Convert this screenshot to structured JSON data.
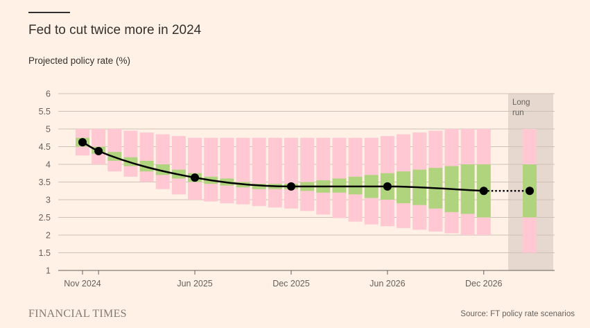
{
  "title": "Fed to cut twice more in 2024",
  "subtitle": "Projected policy rate (%)",
  "brand": "FINANCIAL TIMES",
  "source": "Source: FT policy rate scenarios",
  "colors": {
    "background": "#fff1e5",
    "pink_band": "#ffc8d2",
    "green_band": "#b0d47e",
    "long_run_shade": "#e6d8cf",
    "line": "#000000",
    "grid": "#ccc1b7"
  },
  "chart_data": {
    "type": "line",
    "title": "Fed to cut twice more in 2024",
    "ylabel": "Projected policy rate (%)",
    "ylim": [
      1,
      6
    ],
    "yticks": [
      "1",
      "1.5",
      "2",
      "2.5",
      "3",
      "3.5",
      "4",
      "4.5",
      "5",
      "5.5",
      "6"
    ],
    "xticks": [
      "Nov 2024",
      "Jun 2025",
      "Dec 2025",
      "Jun 2026",
      "Dec 2026"
    ],
    "grid": true,
    "months": [
      "2024-11",
      "2024-12",
      "2025-01",
      "2025-02",
      "2025-03",
      "2025-04",
      "2025-05",
      "2025-06",
      "2025-07",
      "2025-08",
      "2025-09",
      "2025-10",
      "2025-11",
      "2025-12",
      "2026-01",
      "2026-02",
      "2026-03",
      "2026-04",
      "2026-05",
      "2026-06",
      "2026-07",
      "2026-08",
      "2026-09",
      "2026-10",
      "2026-11",
      "2026-12"
    ],
    "outer_band_high": [
      5.0,
      5.0,
      5.0,
      4.95,
      4.9,
      4.85,
      4.8,
      4.75,
      4.75,
      4.75,
      4.75,
      4.75,
      4.75,
      4.75,
      4.75,
      4.75,
      4.75,
      4.75,
      4.75,
      4.8,
      4.85,
      4.9,
      4.95,
      5.0,
      5.0,
      5.0
    ],
    "outer_band_low": [
      4.25,
      4.0,
      3.8,
      3.65,
      3.5,
      3.3,
      3.15,
      3.0,
      2.95,
      2.9,
      2.87,
      2.82,
      2.78,
      2.75,
      2.68,
      2.58,
      2.48,
      2.38,
      2.3,
      2.25,
      2.2,
      2.15,
      2.1,
      2.05,
      2.0,
      2.0
    ],
    "inner_band_high": [
      4.75,
      4.5,
      4.35,
      4.2,
      4.1,
      4.0,
      3.85,
      3.75,
      3.65,
      3.6,
      3.5,
      3.45,
      3.45,
      3.45,
      3.5,
      3.55,
      3.6,
      3.65,
      3.7,
      3.75,
      3.8,
      3.85,
      3.9,
      3.95,
      4.0,
      4.0
    ],
    "inner_band_low": [
      4.5,
      4.3,
      4.1,
      3.95,
      3.8,
      3.7,
      3.6,
      3.5,
      3.45,
      3.4,
      3.35,
      3.3,
      3.3,
      3.3,
      3.25,
      3.2,
      3.2,
      3.15,
      3.05,
      3.0,
      2.9,
      2.85,
      2.75,
      2.65,
      2.6,
      2.5
    ],
    "series": [
      {
        "x": [
          "2024-11",
          "2024-12",
          "2025-06",
          "2025-12",
          "2026-06",
          "2026-12"
        ],
        "values": [
          4.625,
          4.375,
          3.625,
          3.375,
          3.375,
          3.25
        ]
      }
    ],
    "long_run": {
      "label": "Long run",
      "label_lines": [
        "Long",
        "run"
      ],
      "value": 3.25,
      "inner_band": [
        2.5,
        4.0
      ],
      "outer_band": [
        1.5,
        5.0
      ]
    }
  }
}
